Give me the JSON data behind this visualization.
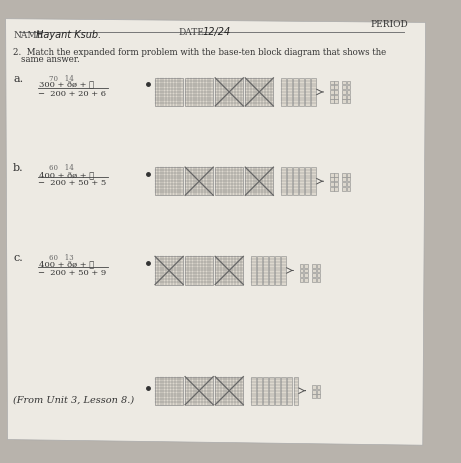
{
  "bg_color": "#b8b3ac",
  "paper_color": "#edeae3",
  "period_text": "PERIOD",
  "date_label": "DATE",
  "date_written": "12/24",
  "name_label": "NAME",
  "name_written": "Hayant Ksub.",
  "instruction1": "2.  Match the expanded form problem with the base-ten block diagram that shows the",
  "instruction2": "same answer.",
  "label_a": "a.",
  "label_b": "b.",
  "label_c": "c.",
  "math_a1": "70   14",
  "math_a2": "300 + ðø + ℓ",
  "math_a3": "−  200 + 20 + 6",
  "math_b1": "60   14",
  "math_b2": "400 + ðø + ℓ",
  "math_b3": "−  200 + 50 + 5",
  "math_c1": "60   13",
  "math_c2": "400 + ðø + ℓ",
  "math_c3": "−  200 + 50 + 9",
  "footer": "(From Unit 3, Lesson 8.)",
  "grid_color": "#777777",
  "grid_face": "#ddd8ce",
  "diag_color": "#666666",
  "rod_color": "#888888",
  "unit_color": "#888888",
  "unit_face": "#ddd8ce"
}
